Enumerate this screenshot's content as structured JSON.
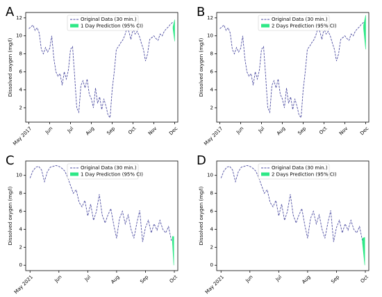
{
  "chart_data": [
    {
      "type": "line",
      "panel": "A",
      "ylabel": "Dissolved oxygen (mg/l)",
      "xlim": [
        4.85,
        12.15
      ],
      "ylim": [
        0.4,
        12.6
      ],
      "yticks": [
        2,
        4,
        6,
        8,
        10,
        12
      ],
      "xticks": [
        {
          "value": 5,
          "label": "May 2017"
        },
        {
          "value": 6,
          "label": "Jun"
        },
        {
          "value": 7,
          "label": "Jul"
        },
        {
          "value": 8,
          "label": "Aug"
        },
        {
          "value": 9,
          "label": "Sep"
        },
        {
          "value": 10,
          "label": "Oct"
        },
        {
          "value": 11,
          "label": "Nov"
        },
        {
          "value": 12,
          "label": "Dec"
        }
      ],
      "series": [
        {
          "name": "Original Data (30 min.)",
          "color": "#4b4ba0",
          "x": [
            5.0,
            5.1,
            5.2,
            5.3,
            5.4,
            5.5,
            5.6,
            5.7,
            5.8,
            5.9,
            6.0,
            6.1,
            6.2,
            6.3,
            6.4,
            6.5,
            6.6,
            6.7,
            6.8,
            6.9,
            7.0,
            7.1,
            7.2,
            7.3,
            7.4,
            7.5,
            7.6,
            7.7,
            7.8,
            7.9,
            8.0,
            8.1,
            8.2,
            8.3,
            8.4,
            8.5,
            8.6,
            8.7,
            8.8,
            8.9,
            9.0,
            9.1,
            9.2,
            9.3,
            9.4,
            9.5,
            9.6,
            9.7,
            9.8,
            9.9,
            10.0,
            10.1,
            10.2,
            10.3,
            10.4,
            10.5,
            10.6,
            10.7,
            10.8,
            10.9,
            11.0,
            11.1,
            11.2,
            11.3,
            11.4,
            11.5,
            11.6,
            11.7,
            11.8,
            11.9
          ],
          "values": [
            10.8,
            11.0,
            11.2,
            10.6,
            10.9,
            10.3,
            8.5,
            8.0,
            8.7,
            8.2,
            8.6,
            10.0,
            7.5,
            6.0,
            5.5,
            5.8,
            4.5,
            6.0,
            5.2,
            6.2,
            8.5,
            8.8,
            5.5,
            2.0,
            1.5,
            4.5,
            5.0,
            4.2,
            5.2,
            3.5,
            3.0,
            2.0,
            4.2,
            2.5,
            3.2,
            1.8,
            3.0,
            2.2,
            1.2,
            0.9,
            4.0,
            6.0,
            8.5,
            8.8,
            9.2,
            9.5,
            10.0,
            10.8,
            10.5,
            9.6,
            10.8,
            10.2,
            10.5,
            10.0,
            9.2,
            8.5,
            7.2,
            8.0,
            9.6,
            9.8,
            10.0,
            9.7,
            9.5,
            10.2,
            10.0,
            10.5,
            10.8,
            11.0,
            11.3,
            11.5
          ]
        }
      ],
      "band": {
        "name": "1 Day Prediction (95% CI)",
        "color": "#2ee886",
        "x": [
          11.92,
          12.0
        ],
        "lower": [
          10.8,
          9.4
        ],
        "upper": [
          11.0,
          11.8
        ]
      }
    },
    {
      "type": "line",
      "panel": "B",
      "ylabel": "Dissolved oxygen (mg/l)",
      "xlim": [
        4.85,
        12.15
      ],
      "ylim": [
        0.4,
        12.6
      ],
      "yticks": [
        2,
        4,
        6,
        8,
        10,
        12
      ],
      "xticks": [
        {
          "value": 5,
          "label": "May 2017"
        },
        {
          "value": 6,
          "label": "Jun"
        },
        {
          "value": 7,
          "label": "Jul"
        },
        {
          "value": 8,
          "label": "Aug"
        },
        {
          "value": 9,
          "label": "Sep"
        },
        {
          "value": 10,
          "label": "Oct"
        },
        {
          "value": 11,
          "label": "Nov"
        },
        {
          "value": 12,
          "label": "Dec"
        }
      ],
      "series": [
        {
          "name": "Original Data (30 min.)",
          "color": "#4b4ba0",
          "x": [
            5.0,
            5.1,
            5.2,
            5.3,
            5.4,
            5.5,
            5.6,
            5.7,
            5.8,
            5.9,
            6.0,
            6.1,
            6.2,
            6.3,
            6.4,
            6.5,
            6.6,
            6.7,
            6.8,
            6.9,
            7.0,
            7.1,
            7.2,
            7.3,
            7.4,
            7.5,
            7.6,
            7.7,
            7.8,
            7.9,
            8.0,
            8.1,
            8.2,
            8.3,
            8.4,
            8.5,
            8.6,
            8.7,
            8.8,
            8.9,
            9.0,
            9.1,
            9.2,
            9.3,
            9.4,
            9.5,
            9.6,
            9.7,
            9.8,
            9.9,
            10.0,
            10.1,
            10.2,
            10.3,
            10.4,
            10.5,
            10.6,
            10.7,
            10.8,
            10.9,
            11.0,
            11.1,
            11.2,
            11.3,
            11.4,
            11.5,
            11.6,
            11.7,
            11.8,
            11.9
          ],
          "values": [
            10.8,
            11.0,
            11.2,
            10.6,
            10.9,
            10.3,
            8.5,
            8.0,
            8.7,
            8.2,
            8.6,
            10.0,
            7.5,
            6.0,
            5.5,
            5.8,
            4.5,
            6.0,
            5.2,
            6.2,
            8.5,
            8.8,
            5.5,
            2.0,
            1.5,
            4.5,
            5.0,
            4.2,
            5.2,
            3.5,
            3.0,
            2.0,
            4.2,
            2.5,
            3.2,
            1.8,
            3.0,
            2.2,
            1.2,
            0.9,
            4.0,
            6.0,
            8.5,
            8.8,
            9.2,
            9.5,
            10.0,
            10.8,
            10.5,
            9.6,
            10.8,
            10.2,
            10.5,
            10.0,
            9.2,
            8.5,
            7.2,
            8.0,
            9.6,
            9.8,
            10.0,
            9.7,
            9.5,
            10.2,
            10.0,
            10.5,
            10.8,
            11.0,
            11.3,
            11.5
          ]
        }
      ],
      "band": {
        "name": "2 Days Prediction (95% CI)",
        "color": "#2ee886",
        "x": [
          11.9,
          12.0
        ],
        "lower": [
          10.8,
          8.5
        ],
        "upper": [
          11.2,
          12.3
        ]
      }
    },
    {
      "type": "line",
      "panel": "C",
      "ylabel": "Dissolved oxygen (mg/l)",
      "xlim": [
        4.85,
        10.12
      ],
      "ylim": [
        -0.6,
        11.6
      ],
      "yticks": [
        0,
        2,
        4,
        6,
        8,
        10
      ],
      "xticks": [
        {
          "value": 5,
          "label": "May 2021"
        },
        {
          "value": 6,
          "label": "Jun"
        },
        {
          "value": 7,
          "label": "Jul"
        },
        {
          "value": 8,
          "label": "Aug"
        },
        {
          "value": 9,
          "label": "Sep"
        },
        {
          "value": 10,
          "label": "Oct"
        }
      ],
      "series": [
        {
          "name": "Original Data (30 min.)",
          "color": "#4b4ba0",
          "x": [
            5.0,
            5.1,
            5.2,
            5.3,
            5.4,
            5.5,
            5.6,
            5.7,
            5.8,
            5.9,
            6.0,
            6.1,
            6.2,
            6.3,
            6.4,
            6.5,
            6.6,
            6.7,
            6.8,
            6.9,
            7.0,
            7.1,
            7.2,
            7.3,
            7.4,
            7.5,
            7.6,
            7.7,
            7.8,
            7.9,
            8.0,
            8.1,
            8.2,
            8.3,
            8.4,
            8.5,
            8.6,
            8.7,
            8.8,
            8.9,
            9.0,
            9.1,
            9.2,
            9.3,
            9.4,
            9.5,
            9.6,
            9.7,
            9.8,
            9.9
          ],
          "values": [
            9.7,
            10.5,
            10.9,
            11.0,
            10.6,
            9.3,
            10.4,
            10.9,
            11.0,
            11.1,
            11.0,
            10.8,
            10.5,
            9.8,
            8.9,
            8.0,
            8.4,
            7.0,
            6.5,
            7.2,
            5.5,
            6.8,
            5.0,
            6.0,
            7.9,
            5.6,
            4.7,
            5.6,
            6.3,
            4.5,
            3.0,
            5.2,
            6.0,
            4.6,
            5.6,
            4.0,
            3.0,
            4.7,
            6.1,
            2.6,
            4.2,
            5.0,
            3.6,
            4.6,
            3.9,
            5.0,
            4.0,
            3.6,
            4.3,
            2.7
          ]
        }
      ],
      "band": {
        "name": "1 Day Prediction (95% CI)",
        "color": "#2ee886",
        "x": [
          9.93,
          9.98
        ],
        "lower": [
          2.8,
          0
        ],
        "upper": [
          3.2,
          3.2
        ]
      }
    },
    {
      "type": "line",
      "panel": "D",
      "ylabel": "Dissolved oxygen (mg/l)",
      "xlim": [
        4.85,
        10.12
      ],
      "ylim": [
        -0.6,
        11.6
      ],
      "yticks": [
        0,
        2,
        4,
        6,
        8,
        10
      ],
      "xticks": [
        {
          "value": 5,
          "label": "May 2021"
        },
        {
          "value": 6,
          "label": "Jun"
        },
        {
          "value": 7,
          "label": "Jul"
        },
        {
          "value": 8,
          "label": "Aug"
        },
        {
          "value": 9,
          "label": "Sep"
        },
        {
          "value": 10,
          "label": "Oct"
        }
      ],
      "series": [
        {
          "name": "Original Data (30 min.)",
          "color": "#4b4ba0",
          "x": [
            5.0,
            5.1,
            5.2,
            5.3,
            5.4,
            5.5,
            5.6,
            5.7,
            5.8,
            5.9,
            6.0,
            6.1,
            6.2,
            6.3,
            6.4,
            6.5,
            6.6,
            6.7,
            6.8,
            6.9,
            7.0,
            7.1,
            7.2,
            7.3,
            7.4,
            7.5,
            7.6,
            7.7,
            7.8,
            7.9,
            8.0,
            8.1,
            8.2,
            8.3,
            8.4,
            8.5,
            8.6,
            8.7,
            8.8,
            8.9,
            9.0,
            9.1,
            9.2,
            9.3,
            9.4,
            9.5,
            9.6,
            9.7,
            9.8,
            9.9
          ],
          "values": [
            9.7,
            10.5,
            10.9,
            11.0,
            10.6,
            9.3,
            10.4,
            10.9,
            11.0,
            11.1,
            11.0,
            10.8,
            10.5,
            9.8,
            8.9,
            8.0,
            8.4,
            7.0,
            6.5,
            7.2,
            5.5,
            6.8,
            5.0,
            6.0,
            7.9,
            5.6,
            4.7,
            5.6,
            6.3,
            4.5,
            3.0,
            5.2,
            6.0,
            4.6,
            5.6,
            4.0,
            3.0,
            4.7,
            6.1,
            2.6,
            4.2,
            5.0,
            3.6,
            4.6,
            3.9,
            5.0,
            4.0,
            3.6,
            4.3,
            2.7
          ]
        }
      ],
      "band": {
        "name": "2 Days Prediction (95% CI)",
        "color": "#2ee886",
        "x": [
          9.9,
          9.98
        ],
        "lower": [
          2.5,
          0
        ],
        "upper": [
          3.0,
          3.1
        ]
      }
    }
  ]
}
